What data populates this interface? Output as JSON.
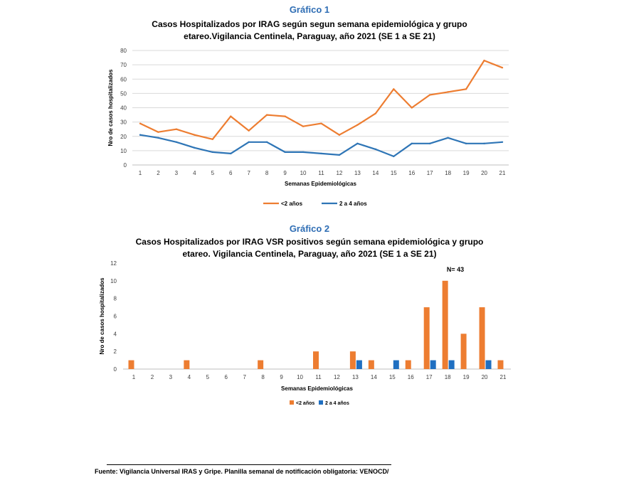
{
  "chart_data": [
    {
      "type": "line",
      "label": "Gráfico 1",
      "title_lines": [
        "Casos Hospitalizados por IRAG según segun semana epidemiológica y grupo",
        "etareo.Vigilancia Centinela, Paraguay,  año 2021 (SE 1 a SE 21)"
      ],
      "xlabel": "Semanas Epidemiológicas",
      "ylabel": "Nro de casos hospitalizados",
      "ylim": [
        0,
        80
      ],
      "yticks": [
        0,
        10,
        20,
        30,
        40,
        50,
        60,
        70,
        80
      ],
      "categories": [
        "1",
        "2",
        "3",
        "4",
        "5",
        "6",
        "7",
        "8",
        "9",
        "10",
        "11",
        "12",
        "13",
        "14",
        "15",
        "16",
        "17",
        "18",
        "19",
        "20",
        "21"
      ],
      "series": [
        {
          "name": "<2 años",
          "color": "#ed7d31",
          "values": [
            29,
            23,
            25,
            21,
            18,
            34,
            24,
            35,
            34,
            27,
            29,
            21,
            28,
            36,
            53,
            40,
            49,
            51,
            53,
            73,
            68
          ]
        },
        {
          "name": "2 a 4 años",
          "color": "#2e75b6",
          "values": [
            21,
            19,
            16,
            12,
            9,
            8,
            16,
            16,
            9,
            9,
            8,
            7,
            15,
            11,
            6,
            15,
            15,
            19,
            15,
            15,
            16
          ]
        }
      ],
      "grid": true,
      "legend_position": "bottom"
    },
    {
      "type": "bar",
      "label": "Gráfico 2",
      "title_lines": [
        "Casos Hospitalizados por IRAG VSR positivos según semana epidemiológica y grupo",
        "etareo. Vigilancia Centinela, Paraguay,  año 2021 (SE 1 a SE 21)"
      ],
      "xlabel": "Semanas Epidemiológicas",
      "ylabel": "Nro de casos hospitalizados",
      "ylim": [
        0,
        12
      ],
      "yticks": [
        0,
        2,
        4,
        6,
        8,
        10,
        12
      ],
      "categories": [
        "1",
        "2",
        "3",
        "4",
        "5",
        "6",
        "7",
        "8",
        "9",
        "10",
        "11",
        "12",
        "13",
        "14",
        "15",
        "16",
        "17",
        "18",
        "19",
        "20",
        "21"
      ],
      "series": [
        {
          "name": "<2 años",
          "color": "#ed7d31",
          "values": [
            1,
            0,
            0,
            1,
            0,
            0,
            0,
            1,
            0,
            0,
            2,
            0,
            2,
            1,
            0,
            1,
            7,
            10,
            4,
            7,
            1
          ]
        },
        {
          "name": "2 a 4 años",
          "color": "#1f6fc1",
          "values": [
            0,
            0,
            0,
            0,
            0,
            0,
            0,
            0,
            0,
            0,
            0,
            0,
            1,
            0,
            1,
            0,
            1,
            1,
            0,
            1,
            0
          ]
        }
      ],
      "annotation": "N= 43",
      "grid": false,
      "legend_position": "bottom"
    }
  ],
  "footer": {
    "line1": "Fuente: Vigilancia Universal IRAS y Gripe. Planilla semanal de notificación obligatoria: VENOCD/"
  }
}
